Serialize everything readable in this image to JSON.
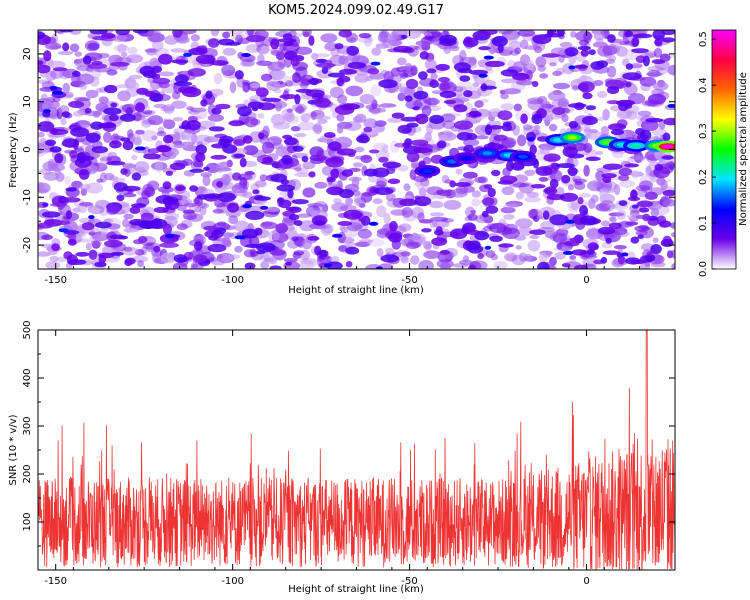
{
  "figure": {
    "title": "KOM5.2024.099.02.49.G17"
  },
  "chart_data": [
    {
      "type": "heatmap",
      "xlabel": "Height of straight line (km)",
      "ylabel": "Frequency (Hz)",
      "xlim": [
        -155,
        25
      ],
      "ylim": [
        -25,
        25
      ],
      "x_ticks": [
        -150,
        -100,
        -50,
        0
      ],
      "y_ticks": [
        -20,
        -10,
        0,
        10,
        20
      ],
      "colorbar": {
        "label": "Normalized spectral amplitude",
        "range": [
          0.0,
          0.52
        ],
        "ticks": [
          0.0,
          0.1,
          0.2,
          0.3,
          0.4,
          0.5
        ],
        "colors": [
          "#ffffff",
          "#6a00e8",
          "#0000ff",
          "#00e5ff",
          "#00ff00",
          "#ffff00",
          "#ff6600",
          "#ff0044",
          "#ff00ff"
        ]
      },
      "signal_ridge": [
        {
          "x": -45,
          "y": -4.5,
          "amp": 0.14
        },
        {
          "x": -38,
          "y": -2.5,
          "amp": 0.16
        },
        {
          "x": -34,
          "y": -1.8,
          "amp": 0.12
        },
        {
          "x": -28,
          "y": -0.8,
          "amp": 0.17
        },
        {
          "x": -22,
          "y": -1.2,
          "amp": 0.19
        },
        {
          "x": -18,
          "y": -1.5,
          "amp": 0.15
        },
        {
          "x": -8,
          "y": 2.0,
          "amp": 0.2
        },
        {
          "x": -4,
          "y": 2.5,
          "amp": 0.3
        },
        {
          "x": 6,
          "y": 1.5,
          "amp": 0.28
        },
        {
          "x": 10,
          "y": 1.0,
          "amp": 0.2
        },
        {
          "x": 14,
          "y": 0.8,
          "amp": 0.22
        },
        {
          "x": 20,
          "y": 0.8,
          "amp": 0.3
        },
        {
          "x": 23,
          "y": 0.6,
          "amp": 0.52
        }
      ]
    },
    {
      "type": "line",
      "xlabel": "Height of straight line (km)",
      "ylabel": "SNR (10 * v/v)",
      "xlim": [
        -155,
        25
      ],
      "ylim": [
        0,
        500
      ],
      "x_ticks": [
        -150,
        -100,
        -50,
        0
      ],
      "y_ticks": [
        100,
        200,
        300,
        400,
        500
      ],
      "series": [
        {
          "color": "#ee3333",
          "mean": 110,
          "noise_envelope": 170,
          "peak": {
            "x": 17,
            "y": 500
          }
        }
      ]
    }
  ]
}
